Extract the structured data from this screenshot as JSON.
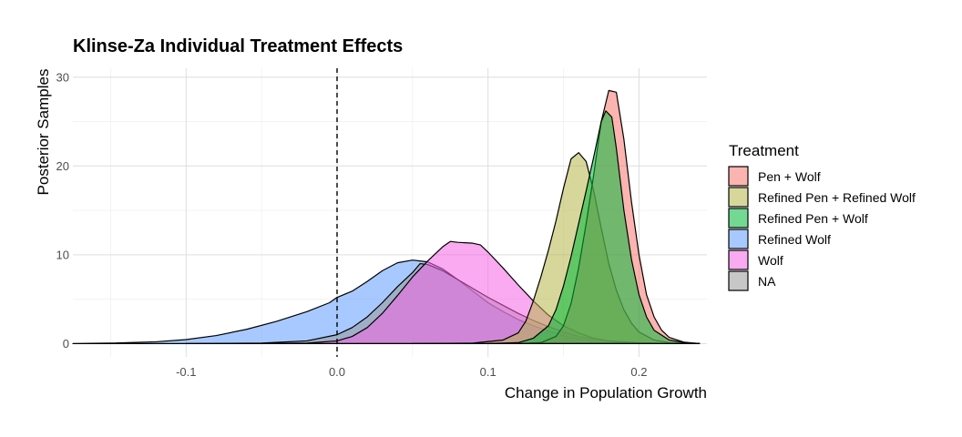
{
  "chart_data": {
    "type": "area",
    "title": "Klinse-Za Individual Treatment Effects",
    "xlabel": "Change in Population Growth",
    "ylabel": "Posterior Samples",
    "xlim": [
      -0.175,
      0.245
    ],
    "ylim": [
      -1.5,
      31
    ],
    "x_ticks": [
      -0.1,
      0.0,
      0.1,
      0.2
    ],
    "x_tick_labels": [
      "-0.1",
      "0.0",
      "0.1",
      "0.2"
    ],
    "y_ticks": [
      0,
      10,
      20,
      30
    ],
    "y_tick_labels": [
      "0",
      "10",
      "20",
      "30"
    ],
    "grid": true,
    "reference_line": {
      "x": 0.0,
      "style": "dashed"
    },
    "legend": {
      "title": "Treatment",
      "position": "right"
    },
    "series": [
      {
        "name": "Refined Wolf",
        "color": "#619CFF",
        "points": [
          [
            -0.175,
            0
          ],
          [
            -0.15,
            0.05
          ],
          [
            -0.12,
            0.2
          ],
          [
            -0.1,
            0.45
          ],
          [
            -0.08,
            0.9
          ],
          [
            -0.06,
            1.6
          ],
          [
            -0.04,
            2.5
          ],
          [
            -0.02,
            3.6
          ],
          [
            -0.005,
            4.6
          ],
          [
            0.0,
            5.2
          ],
          [
            0.01,
            5.9
          ],
          [
            0.02,
            7.0
          ],
          [
            0.03,
            8.2
          ],
          [
            0.04,
            9.1
          ],
          [
            0.05,
            9.4
          ],
          [
            0.06,
            9.2
          ],
          [
            0.07,
            8.4
          ],
          [
            0.08,
            7.2
          ],
          [
            0.09,
            5.9
          ],
          [
            0.1,
            4.6
          ],
          [
            0.11,
            3.6
          ],
          [
            0.12,
            2.7
          ],
          [
            0.13,
            2.0
          ],
          [
            0.14,
            1.4
          ],
          [
            0.15,
            0.9
          ],
          [
            0.16,
            0.5
          ],
          [
            0.17,
            0.3
          ],
          [
            0.19,
            0.1
          ],
          [
            0.21,
            0.03
          ],
          [
            0.24,
            0
          ]
        ]
      },
      {
        "name": "NA",
        "color": "#999999",
        "points": [
          [
            -0.1,
            0
          ],
          [
            -0.05,
            0.05
          ],
          [
            -0.02,
            0.3
          ],
          [
            0.0,
            1.0
          ],
          [
            0.01,
            1.8
          ],
          [
            0.02,
            3.0
          ],
          [
            0.03,
            4.6
          ],
          [
            0.04,
            6.4
          ],
          [
            0.05,
            8.0
          ],
          [
            0.055,
            9.0
          ],
          [
            0.06,
            8.9
          ],
          [
            0.07,
            8.2
          ],
          [
            0.08,
            7.2
          ],
          [
            0.09,
            6.2
          ],
          [
            0.1,
            5.2
          ],
          [
            0.11,
            4.3
          ],
          [
            0.12,
            3.4
          ],
          [
            0.13,
            2.6
          ],
          [
            0.14,
            1.9
          ],
          [
            0.15,
            1.3
          ],
          [
            0.16,
            0.8
          ],
          [
            0.17,
            0.5
          ],
          [
            0.18,
            0.3
          ],
          [
            0.2,
            0.1
          ],
          [
            0.22,
            0.02
          ],
          [
            0.24,
            0
          ]
        ]
      },
      {
        "name": "Wolf",
        "color": "#F564E3",
        "points": [
          [
            -0.05,
            0
          ],
          [
            -0.02,
            0.05
          ],
          [
            0.0,
            0.3
          ],
          [
            0.01,
            0.8
          ],
          [
            0.02,
            1.8
          ],
          [
            0.03,
            3.4
          ],
          [
            0.04,
            5.4
          ],
          [
            0.05,
            7.5
          ],
          [
            0.06,
            9.3
          ],
          [
            0.07,
            10.9
          ],
          [
            0.075,
            11.5
          ],
          [
            0.08,
            11.4
          ],
          [
            0.09,
            11.3
          ],
          [
            0.095,
            11.1
          ],
          [
            0.1,
            10.3
          ],
          [
            0.11,
            8.5
          ],
          [
            0.12,
            6.6
          ],
          [
            0.13,
            4.8
          ],
          [
            0.14,
            3.2
          ],
          [
            0.15,
            2.0
          ],
          [
            0.16,
            1.2
          ],
          [
            0.17,
            0.6
          ],
          [
            0.18,
            0.3
          ],
          [
            0.19,
            0.1
          ],
          [
            0.21,
            0.02
          ],
          [
            0.24,
            0
          ]
        ]
      },
      {
        "name": "Refined Pen + Refined Wolf",
        "color": "#B7B74A",
        "points": [
          [
            0.05,
            0
          ],
          [
            0.09,
            0.05
          ],
          [
            0.11,
            0.4
          ],
          [
            0.12,
            1.2
          ],
          [
            0.125,
            2.5
          ],
          [
            0.13,
            4.8
          ],
          [
            0.135,
            7.5
          ],
          [
            0.14,
            10.5
          ],
          [
            0.145,
            13.8
          ],
          [
            0.15,
            17.5
          ],
          [
            0.155,
            20.8
          ],
          [
            0.16,
            21.5
          ],
          [
            0.165,
            20.5
          ],
          [
            0.17,
            17.2
          ],
          [
            0.175,
            13.0
          ],
          [
            0.18,
            9.0
          ],
          [
            0.185,
            6.0
          ],
          [
            0.19,
            3.8
          ],
          [
            0.195,
            2.3
          ],
          [
            0.2,
            1.3
          ],
          [
            0.21,
            0.4
          ],
          [
            0.22,
            0.1
          ],
          [
            0.24,
            0
          ]
        ]
      },
      {
        "name": "Pen + Wolf",
        "color": "#F8766D",
        "points": [
          [
            0.12,
            0
          ],
          [
            0.135,
            0.1
          ],
          [
            0.145,
            0.8
          ],
          [
            0.15,
            2.0
          ],
          [
            0.155,
            4.5
          ],
          [
            0.16,
            8.5
          ],
          [
            0.165,
            13.5
          ],
          [
            0.17,
            19.0
          ],
          [
            0.175,
            25.0
          ],
          [
            0.18,
            28.5
          ],
          [
            0.185,
            28.3
          ],
          [
            0.19,
            23.0
          ],
          [
            0.195,
            16.0
          ],
          [
            0.2,
            10.0
          ],
          [
            0.205,
            5.5
          ],
          [
            0.21,
            3.0
          ],
          [
            0.215,
            1.5
          ],
          [
            0.22,
            0.7
          ],
          [
            0.23,
            0.15
          ],
          [
            0.24,
            0
          ]
        ]
      },
      {
        "name": "Refined Pen + Wolf",
        "color": "#00BA38",
        "points": [
          [
            0.1,
            0
          ],
          [
            0.12,
            0.1
          ],
          [
            0.13,
            0.6
          ],
          [
            0.14,
            2.0
          ],
          [
            0.145,
            3.8
          ],
          [
            0.15,
            6.5
          ],
          [
            0.155,
            9.8
          ],
          [
            0.16,
            13.5
          ],
          [
            0.165,
            17.2
          ],
          [
            0.17,
            21.0
          ],
          [
            0.175,
            25.0
          ],
          [
            0.178,
            26.2
          ],
          [
            0.182,
            25.5
          ],
          [
            0.185,
            22.0
          ],
          [
            0.19,
            15.0
          ],
          [
            0.195,
            9.5
          ],
          [
            0.2,
            5.5
          ],
          [
            0.205,
            3.0
          ],
          [
            0.21,
            1.5
          ],
          [
            0.22,
            0.4
          ],
          [
            0.23,
            0.1
          ],
          [
            0.24,
            0
          ]
        ]
      }
    ],
    "legend_order": [
      "Pen + Wolf",
      "Refined Pen + Refined Wolf",
      "Refined Pen + Wolf",
      "Refined Wolf",
      "Wolf",
      "NA"
    ]
  }
}
